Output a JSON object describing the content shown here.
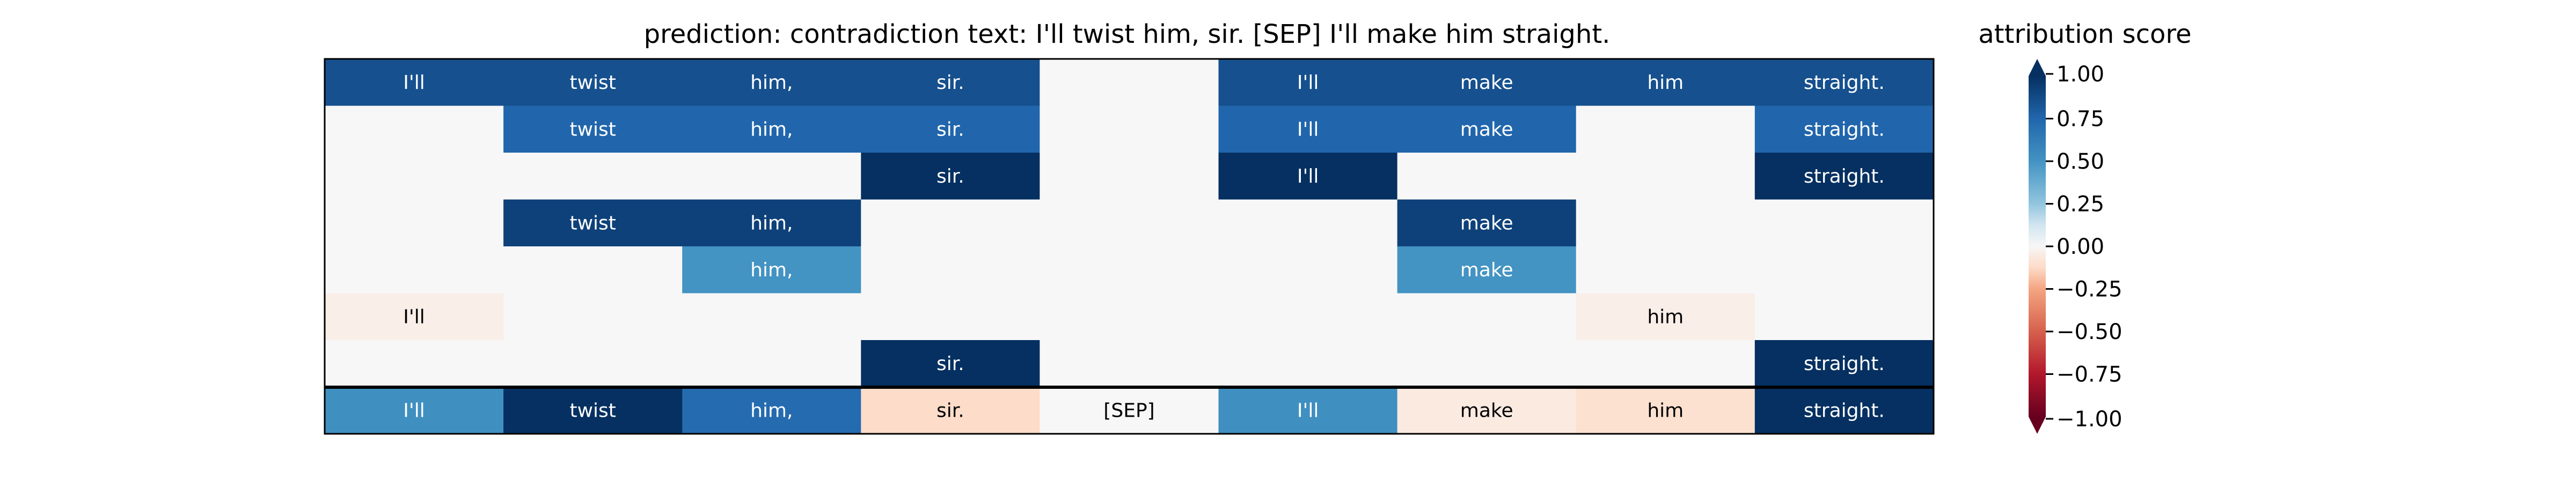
{
  "chart_data": {
    "type": "heatmap",
    "title": "prediction:  contradiction     text:  I'll twist him, sir. [SEP] I'll make him straight.",
    "colorbar": {
      "label": "attribution score",
      "ticks": [
        "1.00",
        "0.75",
        "0.50",
        "0.25",
        "0.00",
        "−0.25",
        "−0.50",
        "−0.75",
        "−1.00"
      ],
      "tick_values": [
        1.0,
        0.75,
        0.5,
        0.25,
        0.0,
        -0.25,
        -0.5,
        -0.75,
        -1.0
      ],
      "vmin": -1.0,
      "vmax": 1.0,
      "colormap": "RdBu",
      "extend": "both"
    },
    "tokens": [
      "I'll",
      "twist",
      "him,",
      "sir.",
      "[SEP]",
      "I'll",
      "make",
      "him",
      "straight."
    ],
    "rows": [
      {
        "values": [
          0.85,
          0.85,
          0.85,
          0.85,
          0.0,
          0.85,
          0.85,
          0.85,
          0.85
        ],
        "labels": [
          "I'll",
          "twist",
          "him,",
          "sir.",
          "",
          "I'll",
          "make",
          "him",
          "straight."
        ]
      },
      {
        "values": [
          0.0,
          0.75,
          0.75,
          0.75,
          0.0,
          0.75,
          0.75,
          0.0,
          0.75
        ],
        "labels": [
          "",
          "twist",
          "him,",
          "sir.",
          "",
          "I'll",
          "make",
          "",
          "straight."
        ]
      },
      {
        "values": [
          0.0,
          0.0,
          0.0,
          1.0,
          0.0,
          1.0,
          0.0,
          0.0,
          1.0
        ],
        "labels": [
          "",
          "",
          "",
          "sir.",
          "",
          "I'll",
          "",
          "",
          "straight."
        ]
      },
      {
        "values": [
          0.0,
          0.92,
          0.92,
          0.0,
          0.0,
          0.0,
          0.92,
          0.0,
          0.0
        ],
        "labels": [
          "",
          "twist",
          "him,",
          "",
          "",
          "",
          "make",
          "",
          ""
        ]
      },
      {
        "values": [
          0.0,
          0.0,
          0.5,
          0.0,
          0.0,
          0.0,
          0.5,
          0.0,
          0.0
        ],
        "labels": [
          "",
          "",
          "him,",
          "",
          "",
          "",
          "make",
          "",
          ""
        ]
      },
      {
        "values": [
          -0.04,
          0.0,
          0.0,
          0.0,
          0.0,
          0.0,
          0.0,
          -0.04,
          0.0
        ],
        "labels": [
          "I'll",
          "",
          "",
          "",
          "",
          "",
          "",
          "him",
          ""
        ]
      },
      {
        "values": [
          0.0,
          0.0,
          0.0,
          1.0,
          0.0,
          0.0,
          0.0,
          0.0,
          1.0
        ],
        "labels": [
          "",
          "",
          "",
          "sir.",
          "",
          "",
          "",
          "",
          "straight."
        ]
      }
    ],
    "summary_row": {
      "values": [
        0.52,
        1.0,
        0.72,
        -0.12,
        0.0,
        0.52,
        -0.06,
        -0.1,
        1.0
      ],
      "labels": [
        "I'll",
        "twist",
        "him,",
        "sir.",
        "[SEP]",
        "I'll",
        "make",
        "him",
        "straight."
      ]
    }
  }
}
